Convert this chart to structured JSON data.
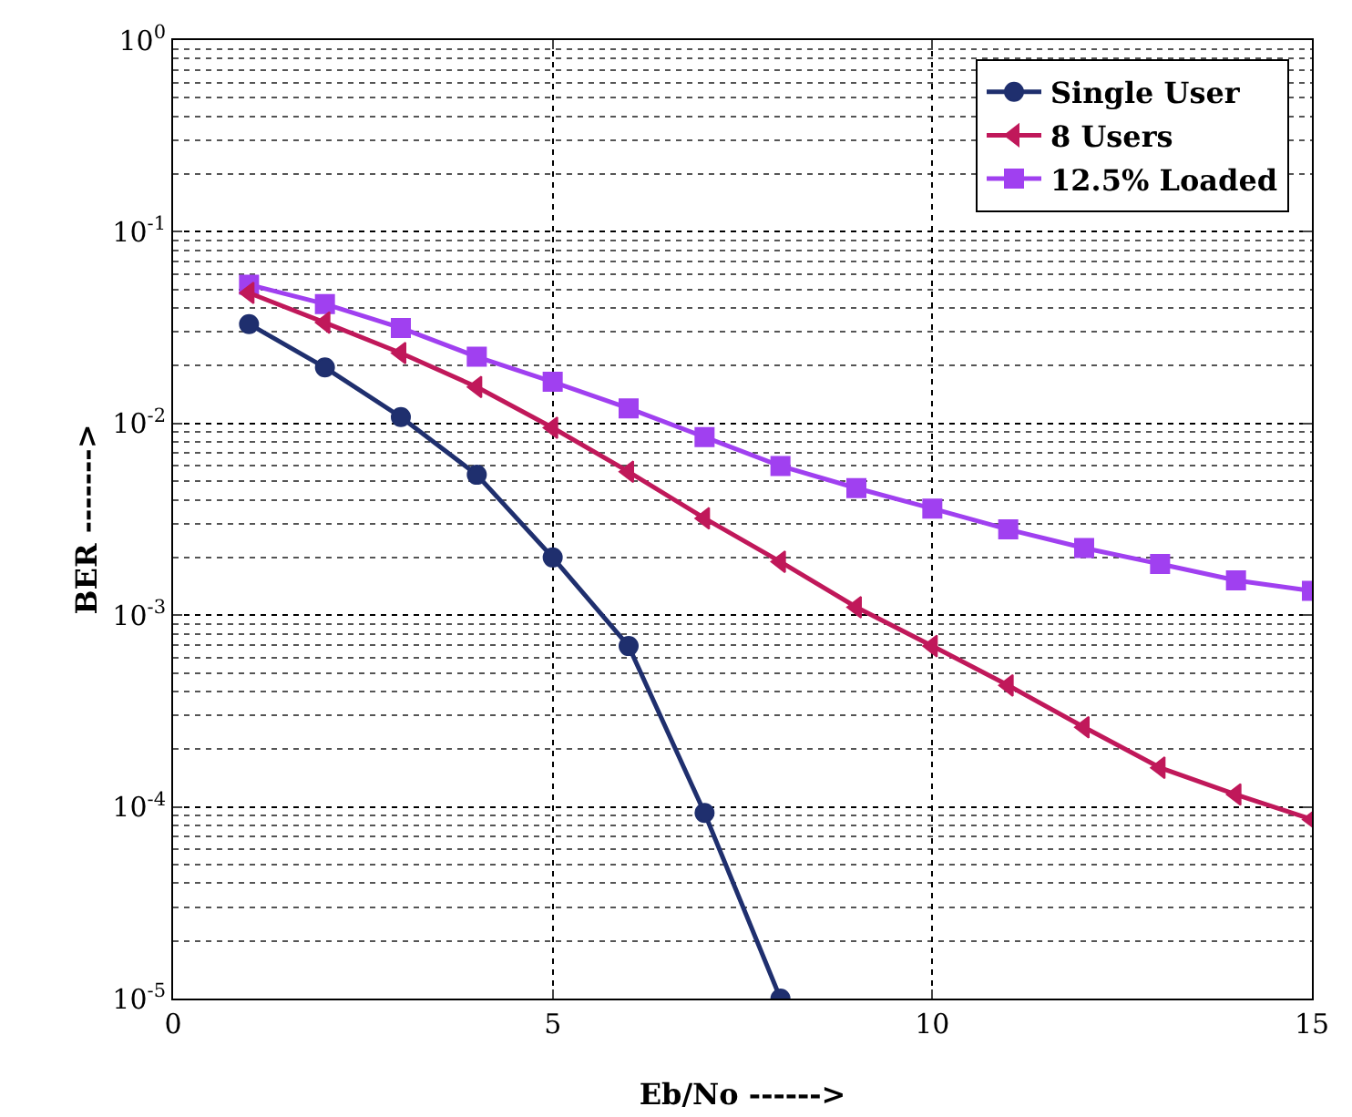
{
  "chart_data": {
    "type": "line",
    "xlabel": "Eb/No ------>",
    "ylabel": "BER ------->",
    "x": [
      1,
      2,
      3,
      4,
      5,
      6,
      7,
      8,
      9,
      10,
      11,
      12,
      13,
      14,
      15
    ],
    "series": [
      {
        "name": "Single User",
        "color": "#1f2f6e",
        "marker": "circle",
        "values": [
          0.033,
          0.0196,
          0.0108,
          0.0054,
          0.002,
          0.00069,
          9.3e-05,
          1e-05,
          null,
          null,
          null,
          null,
          null,
          null,
          null
        ]
      },
      {
        "name": "8 Users",
        "color": "#c0185a",
        "marker": "triangle",
        "values": [
          0.048,
          0.0336,
          0.0233,
          0.0155,
          0.0095,
          0.0056,
          0.0032,
          0.0019,
          0.0011,
          0.00069,
          0.00043,
          0.00026,
          0.00016,
          0.000116,
          8.6e-05
        ]
      },
      {
        "name": "12.5% Loaded",
        "color": "#a040f0",
        "marker": "square",
        "values": [
          0.053,
          0.042,
          0.0315,
          0.0223,
          0.0165,
          0.012,
          0.0085,
          0.006,
          0.0046,
          0.0036,
          0.0028,
          0.00224,
          0.00185,
          0.00152,
          0.00134
        ]
      }
    ],
    "log": "y",
    "xlim": [
      0,
      15
    ],
    "xticks": [
      0,
      5,
      10,
      15
    ],
    "ylim": [
      1e-05,
      1
    ],
    "yticks": [
      {
        "value": 1e-05,
        "label": "10$^{-5}$"
      },
      {
        "value": 0.0001,
        "label": "10$^{-4}$"
      },
      {
        "value": 0.001,
        "label": "10$^{-3}$"
      },
      {
        "value": 0.01,
        "label": "10$^{-2}$"
      },
      {
        "value": 0.1,
        "label": "10$^{-1}$"
      },
      {
        "value": 1,
        "label": "10$^{0}$"
      }
    ],
    "grid": true,
    "legend": "top right",
    "line_style": "solid"
  }
}
